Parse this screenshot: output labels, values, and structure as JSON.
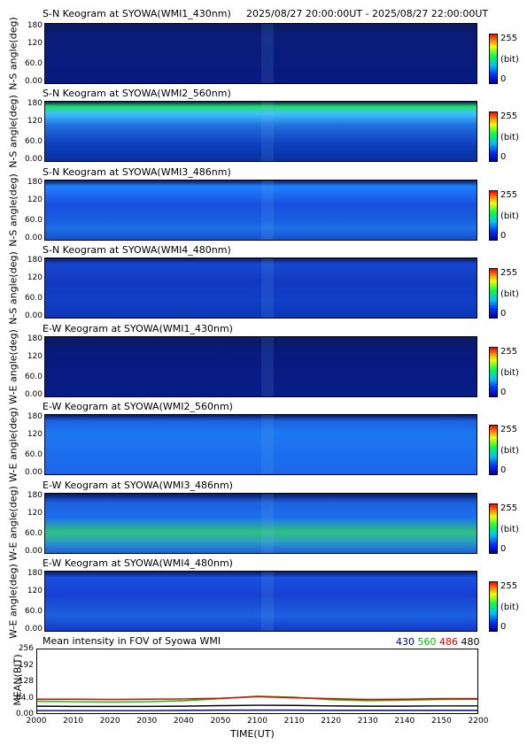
{
  "header": {
    "title": "S-N Keogram at SYOWA(WMI1_430nm)",
    "time_range": "2025/08/27 20:00:00UT - 2025/08/27 22:00:00UT"
  },
  "keograms": [
    {
      "title": "S-N Keogram at SYOWA(WMI1_430nm)",
      "ylabel": "N-S angle(deg)"
    },
    {
      "title": "S-N Keogram at SYOWA(WMI2_560nm)",
      "ylabel": "N-S angle(deg)"
    },
    {
      "title": "S-N Keogram at SYOWA(WMI3_486nm)",
      "ylabel": "N-S angle(deg)"
    },
    {
      "title": "S-N Keogram at SYOWA(WMI4_480nm)",
      "ylabel": "N-S angle(deg)"
    },
    {
      "title": "E-W Keogram at SYOWA(WMI1_430nm)",
      "ylabel": "W-E angle(deg)"
    },
    {
      "title": "E-W Keogram at SYOWA(WMI2_560nm)",
      "ylabel": "W-E angle(deg)"
    },
    {
      "title": "E-W Keogram at SYOWA(WMI3_486nm)",
      "ylabel": "W-E angle(deg)"
    },
    {
      "title": "E-W Keogram at SYOWA(WMI4_480nm)",
      "ylabel": "W-E angle(deg)"
    }
  ],
  "keogram_yticks": [
    "180",
    "120",
    "60.0",
    "0.00"
  ],
  "colorbar": {
    "max": "255",
    "unit": "(bit)",
    "min": "0"
  },
  "colors": {
    "c430": "#000080",
    "c560": "#00c000",
    "c486": "#e00000",
    "c480": "#000000"
  },
  "chart_data": {
    "type": "line",
    "title": "Mean intensity in FOV of Syowa WMI",
    "xlabel": "TIME(UT)",
    "ylabel": "MEAN(BIT)",
    "x_ticks": [
      "2000",
      "2010",
      "2020",
      "2030",
      "2040",
      "2050",
      "2100",
      "2110",
      "2120",
      "2130",
      "2140",
      "2150",
      "2200"
    ],
    "y_ticks": [
      "256",
      "192",
      "128",
      "64.0",
      "0.00"
    ],
    "ylim": [
      0,
      256
    ],
    "legend": {
      "placement": "top-right",
      "entries": [
        "430",
        "560",
        "486",
        "480"
      ]
    },
    "x": [
      0,
      10,
      20,
      30,
      40,
      50,
      60,
      70,
      80,
      90,
      100,
      110,
      120
    ],
    "series": [
      {
        "name": "430",
        "color": "#000080",
        "values": [
          10,
          10,
          10,
          10,
          11,
          12,
          12,
          12,
          11,
          11,
          11,
          11,
          11
        ]
      },
      {
        "name": "560",
        "color": "#00c000",
        "values": [
          48,
          46,
          45,
          46,
          50,
          58,
          68,
          64,
          54,
          50,
          52,
          55,
          56
        ]
      },
      {
        "name": "486",
        "color": "#e00000",
        "values": [
          56,
          56,
          55,
          56,
          57,
          60,
          66,
          62,
          58,
          55,
          56,
          58,
          58
        ]
      },
      {
        "name": "480",
        "color": "#000000",
        "values": [
          28,
          27,
          27,
          27,
          28,
          30,
          32,
          31,
          29,
          28,
          28,
          29,
          29
        ]
      }
    ]
  }
}
